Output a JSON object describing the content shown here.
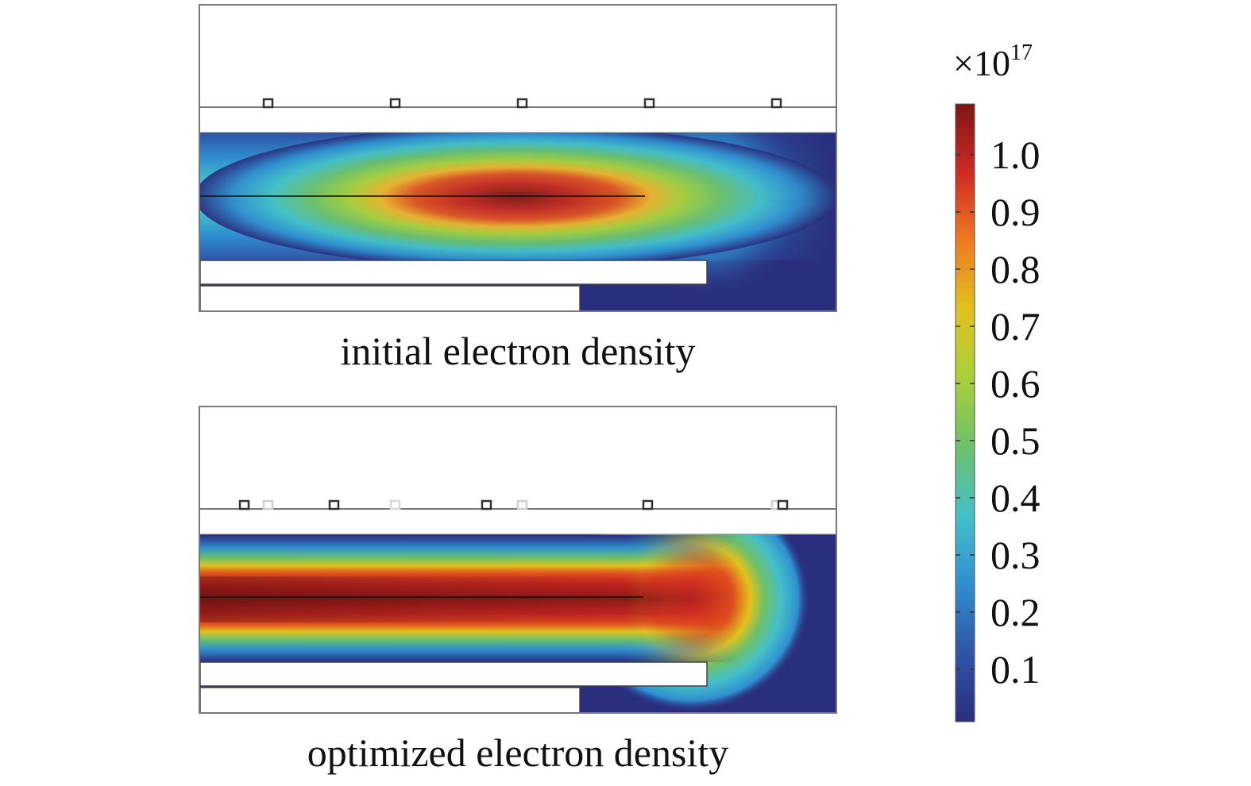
{
  "panels": [
    {
      "caption": "initial electron density",
      "profile": "initial"
    },
    {
      "caption": "optimized electron density",
      "profile": "optimized"
    }
  ],
  "colorbar": {
    "multiplier_base": "×10",
    "multiplier_exponent": "17",
    "ticks": [
      "1.0",
      "0.9",
      "0.8",
      "0.7",
      "0.6",
      "0.5",
      "0.4",
      "0.3",
      "0.2",
      "0.1"
    ],
    "colormap": [
      "#2a2e7e",
      "#2f54a8",
      "#2f8fd0",
      "#44c0c8",
      "#6cc06a",
      "#a9cf3a",
      "#e1c21e",
      "#ef7a20",
      "#d02a23",
      "#7c1716"
    ]
  }
}
